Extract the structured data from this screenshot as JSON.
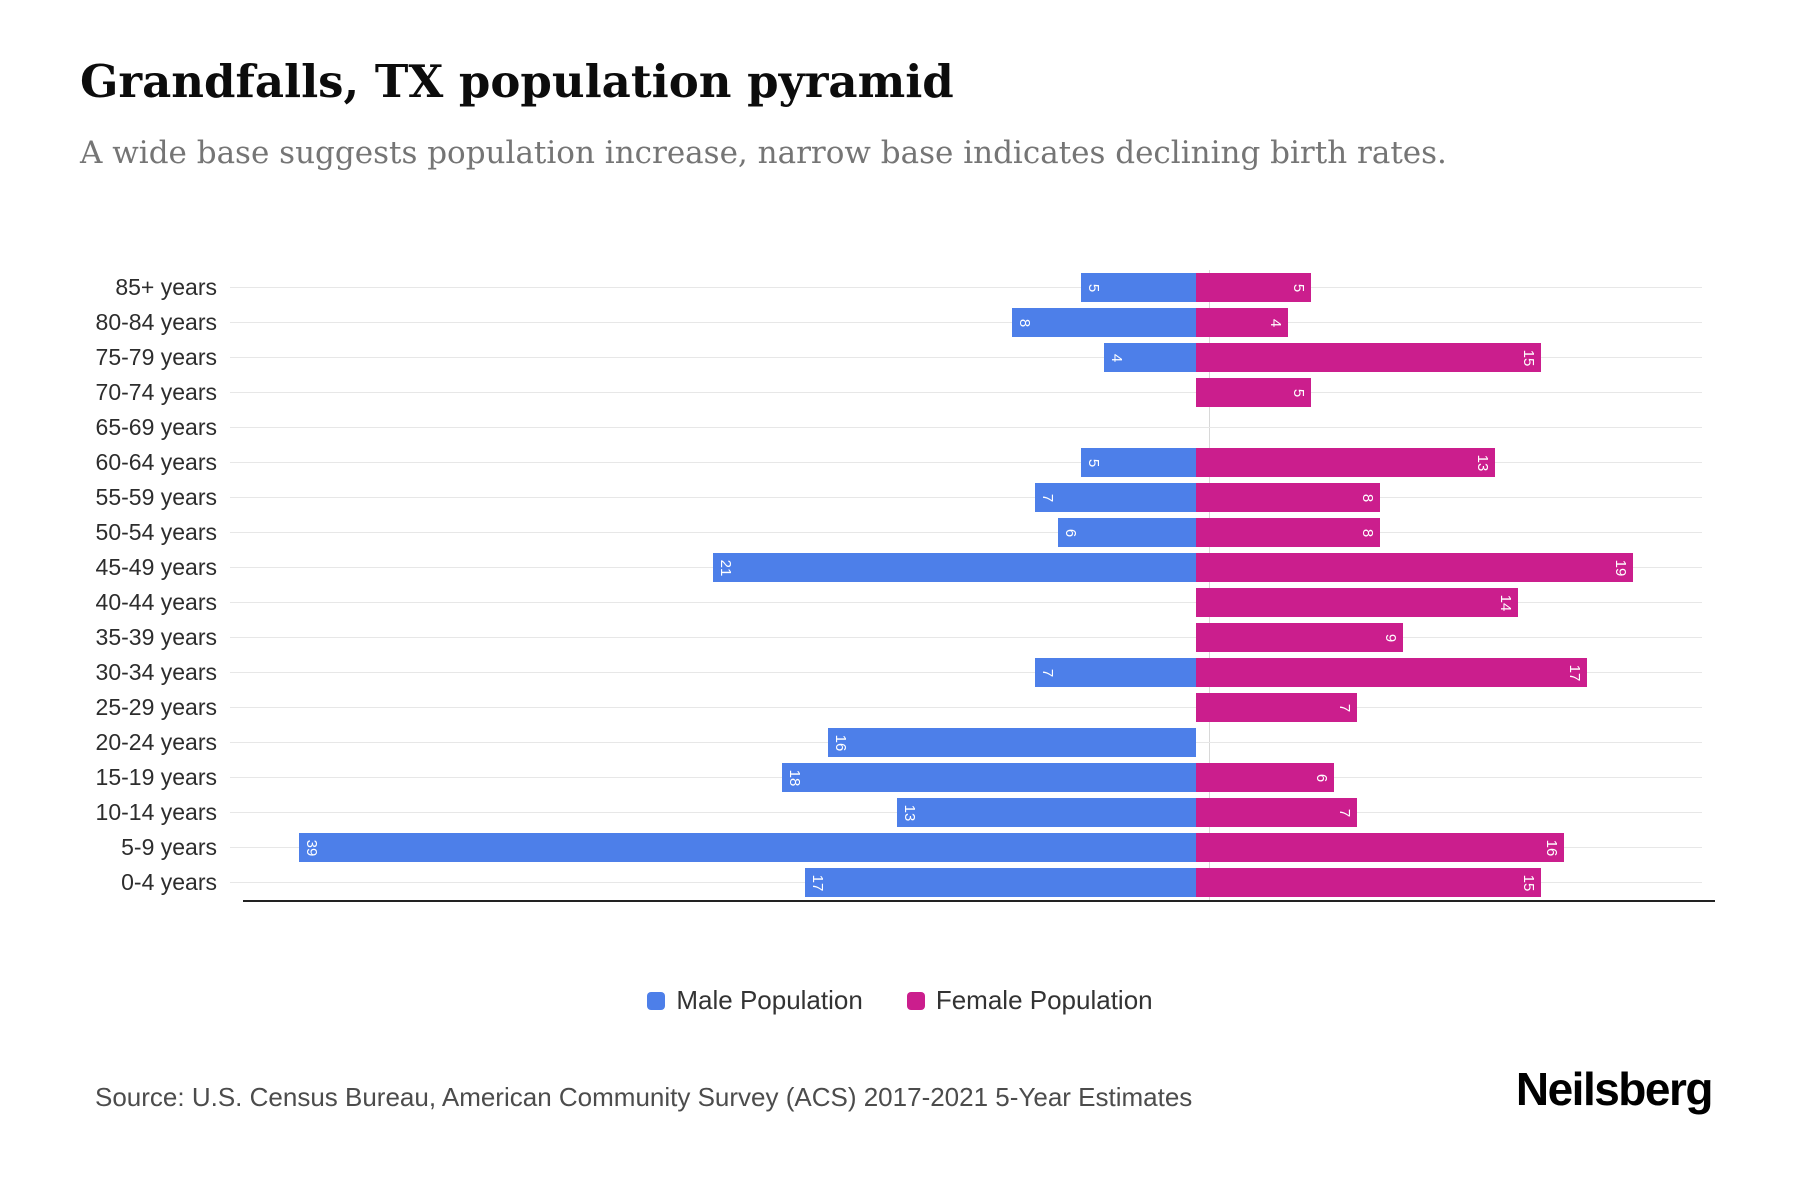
{
  "title": "Grandfalls, TX population pyramid",
  "subtitle": "A wide base suggests population increase, narrow base indicates declining birth rates.",
  "legend": {
    "items": [
      {
        "label": "Male Population",
        "color": "#4d7fe9"
      },
      {
        "label": "Female Population",
        "color": "#cb1e8d"
      }
    ]
  },
  "footer": {
    "source": "Source: U.S. Census Bureau, American Community Survey (ACS) 2017-2021 5-Year Estimates",
    "brand": "Neilsberg"
  },
  "chart_data": {
    "type": "bar",
    "variant": "population-pyramid",
    "title": "Grandfalls, TX population pyramid",
    "categories": [
      "85+ years",
      "80-84 years",
      "75-79 years",
      "70-74 years",
      "65-69 years",
      "60-64 years",
      "55-59 years",
      "50-54 years",
      "45-49 years",
      "40-44 years",
      "35-39 years",
      "30-34 years",
      "25-29 years",
      "20-24 years",
      "15-19 years",
      "10-14 years",
      "5-9 years",
      "0-4 years"
    ],
    "series": [
      {
        "name": "Male Population",
        "color": "#4d7fe9",
        "direction": "left",
        "values": [
          5,
          8,
          4,
          0,
          0,
          5,
          7,
          6,
          21,
          0,
          0,
          7,
          0,
          16,
          18,
          13,
          39,
          17
        ]
      },
      {
        "name": "Female Population",
        "color": "#cb1e8d",
        "direction": "right",
        "values": [
          5,
          4,
          15,
          5,
          0,
          13,
          8,
          8,
          19,
          14,
          9,
          17,
          7,
          0,
          6,
          7,
          16,
          15
        ]
      }
    ],
    "x_axis": {
      "male_max": 42,
      "female_max": 22
    },
    "grid": true,
    "legend_position": "bottom",
    "bar_value_labels": "inside-end, rotated 90deg, white"
  }
}
